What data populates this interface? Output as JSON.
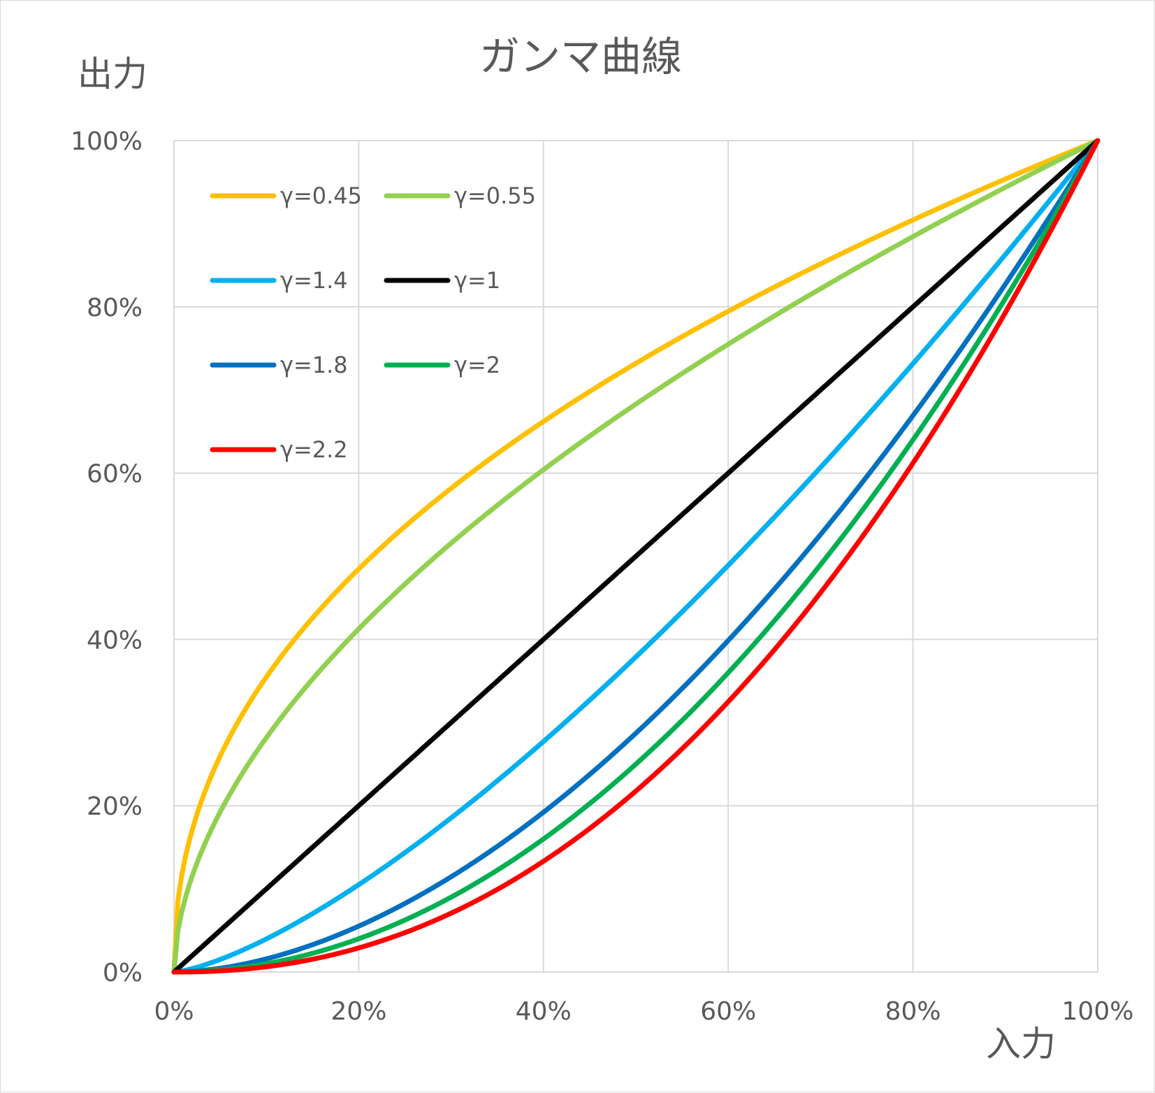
{
  "chart_data": {
    "type": "line",
    "title": "ガンマ曲線",
    "xlabel": "入力",
    "ylabel": "出力",
    "xlim": [
      0,
      100
    ],
    "ylim": [
      0,
      100
    ],
    "x_ticks": [
      "0%",
      "20%",
      "40%",
      "60%",
      "80%",
      "100%"
    ],
    "y_ticks": [
      "0%",
      "20%",
      "40%",
      "60%",
      "80%",
      "100%"
    ],
    "grid": true,
    "legend_position": "top-left",
    "curve_formula": "y = x^gamma",
    "series": [
      {
        "name": "γ=0.45",
        "gamma": 0.45,
        "color": "#FFC000"
      },
      {
        "name": "γ=0.55",
        "gamma": 0.55,
        "color": "#92D050"
      },
      {
        "name": "γ=1.4",
        "gamma": 1.4,
        "color": "#00B0F0"
      },
      {
        "name": "γ=1",
        "gamma": 1,
        "color": "#000000"
      },
      {
        "name": "γ=1.8",
        "gamma": 1.8,
        "color": "#0070C0"
      },
      {
        "name": "γ=2",
        "gamma": 2,
        "color": "#00B050"
      },
      {
        "name": "γ=2.2",
        "gamma": 2.2,
        "color": "#FF0000"
      }
    ]
  }
}
